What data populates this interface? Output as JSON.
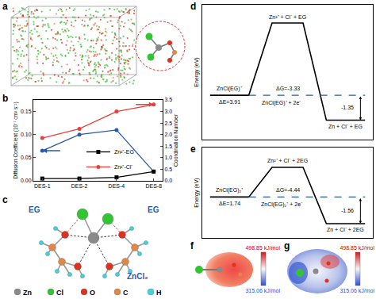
{
  "panel_labels": [
    "a",
    "b",
    "c",
    "d",
    "e",
    "f",
    "g"
  ],
  "chart_data": [
    {
      "type": "line",
      "categories": [
        "DES-1",
        "DES-2",
        "DES-4",
        "DES-8"
      ],
      "y_label": "Diffusion Coefficient (10⁻⁷ cm² s⁻¹)",
      "y2_label": "Coordination Number",
      "ylim": [
        0,
        0.175
      ],
      "yticks": [
        {
          "value": 0,
          "label": "0.00"
        },
        0.05,
        {
          "value": 0.1,
          "label": "0.10"
        },
        0.15
      ],
      "y2lim": [
        0,
        3.5
      ],
      "y2ticks": [
        {
          "value": 0,
          "label": "0.0"
        },
        0.5,
        {
          "value": 1,
          "label": "1.0"
        },
        1.5,
        {
          "value": 2,
          "label": "2.0"
        },
        2.5,
        {
          "value": 3,
          "label": "3.0"
        },
        3.5
      ],
      "legend": "center",
      "grid": false,
      "series": [
        {
          "name": "Zn²⁺-EG",
          "color": "#000000",
          "marker": "square",
          "axis": "y2",
          "values": [
            0.1,
            0.1,
            0.15,
            0.4
          ]
        },
        {
          "name": "Zn²⁺-Cl⁻",
          "color": "#e8413c",
          "marker": "circle",
          "axis": "y2",
          "values": [
            1.85,
            2.25,
            3.0,
            3.3
          ]
        },
        {
          "color": "#2b5aa8",
          "marker": "circle",
          "values": [
            0.065,
            0.1,
            0.11,
            0.02
          ]
        }
      ]
    },
    {
      "type": "energy_diagram",
      "y_label": "Energy (eV)",
      "tick_labels": false,
      "ylim": [
        -2.4,
        4.9
      ],
      "levels": [
        {
          "label": "ZnCl(EG)⁺",
          "value": 0
        },
        {
          "label": "Zn²⁺ + Cl⁻ + EG",
          "value": 3.91
        },
        {
          "label": "Zn + Cl⁻ + EG",
          "value": -1.35
        }
      ],
      "reference": {
        "label": "ZnCl(EG)⁺ + 2e⁻",
        "value": 0
      },
      "texts": {
        "delta_e": "ΔE=3.91",
        "delta_g": "ΔG=-3.33",
        "end": "-1.35"
      }
    },
    {
      "type": "energy_diagram",
      "y_label": "Energy (eV)",
      "tick_labels": false,
      "ylim": [
        -2.4,
        2.9
      ],
      "levels": [
        {
          "label": "ZnCl(EG)₂⁺",
          "value": 0
        },
        {
          "label": "Zn²⁺ + Cl⁻ + 2EG",
          "value": 1.74
        },
        {
          "label": "Zn + Cl⁻ + 2EG",
          "value": -1.56
        }
      ],
      "reference": {
        "label": "ZnCl(EG)₂⁺ + 2e⁻",
        "value": 0
      },
      "texts": {
        "delta_e": "ΔE=1.74",
        "delta_g": "ΔG=-4.44",
        "end": "-1.56"
      }
    }
  ],
  "molecule": {
    "labels": [
      "EG",
      "EG",
      "ZnCl₂"
    ],
    "atoms": [
      {
        "symbol": "Zn",
        "color": "#8a8a8a"
      },
      {
        "symbol": "Cl",
        "color": "#33c433"
      },
      {
        "symbol": "O",
        "color": "#e0301e"
      },
      {
        "symbol": "C",
        "color": "#e0884a"
      },
      {
        "symbol": "H",
        "color": "#3fd3e3"
      }
    ]
  },
  "esp_maps": [
    {
      "max": {
        "value": 498.85,
        "label": "498.85 kJ/mol"
      },
      "min": {
        "value": 315.06,
        "label": "315.06 kJ/mol"
      }
    },
    {
      "max": {
        "value": 498.85,
        "label": "498.85 kJ/mol"
      },
      "min": {
        "value": 315.06,
        "label": "315.06 kJ/mol"
      }
    }
  ]
}
